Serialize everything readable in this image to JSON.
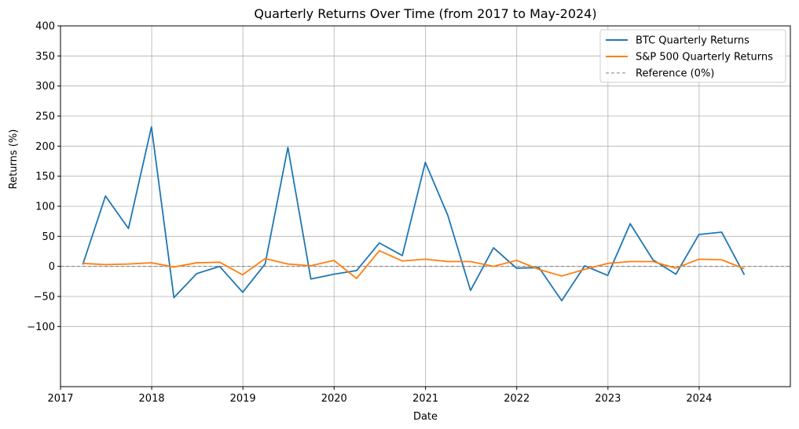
{
  "chart_data": {
    "type": "line",
    "title": "Quarterly Returns Over Time (from 2017 to May-2024)",
    "xlabel": "Date",
    "ylabel": "Returns (%)",
    "xlim": [
      "2017-01-01",
      "2024-12-31"
    ],
    "ylim": [
      -200,
      400
    ],
    "yticks": [
      -100,
      -50,
      0,
      50,
      100,
      150,
      200,
      250,
      300,
      350,
      400
    ],
    "ytick_labels": [
      "−100",
      "−50",
      "0",
      "50",
      "100",
      "150",
      "200",
      "250",
      "300",
      "350",
      "400"
    ],
    "xticks": [
      "2017-01-01",
      "2018-01-01",
      "2019-01-01",
      "2020-01-01",
      "2021-01-01",
      "2022-01-01",
      "2023-01-01",
      "2024-01-01"
    ],
    "xtick_labels": [
      "2017",
      "2018",
      "2019",
      "2020",
      "2021",
      "2022",
      "2023",
      "2024"
    ],
    "grid": true,
    "legend_position": "top-right",
    "x": [
      "2017-03-31",
      "2017-06-30",
      "2017-09-30",
      "2017-12-31",
      "2018-03-31",
      "2018-06-30",
      "2018-09-30",
      "2018-12-31",
      "2019-03-31",
      "2019-06-30",
      "2019-09-30",
      "2019-12-31",
      "2020-03-31",
      "2020-06-30",
      "2020-09-30",
      "2020-12-31",
      "2021-03-31",
      "2021-06-30",
      "2021-09-30",
      "2021-12-31",
      "2022-03-31",
      "2022-06-30",
      "2022-09-30",
      "2022-12-31",
      "2023-03-31",
      "2023-06-30",
      "2023-09-30",
      "2023-12-31",
      "2024-03-31",
      "2024-06-30"
    ],
    "series": [
      {
        "name": "BTC Quarterly Returns",
        "color": "#1f77b4",
        "values": [
          3,
          117,
          63,
          232,
          -52,
          -12,
          0,
          -43,
          4,
          198,
          -21,
          -13,
          -7,
          39,
          18,
          173,
          85,
          -40,
          31,
          -3,
          -2,
          -57,
          1,
          -15,
          71,
          11,
          -13,
          53,
          57,
          -14
        ]
      },
      {
        "name": "S&P 500 Quarterly Returns",
        "color": "#ff7f0e",
        "values": [
          5,
          3,
          4,
          6,
          -1,
          6,
          7,
          -14,
          13,
          4,
          1,
          10,
          -20,
          26,
          9,
          12,
          8,
          8,
          0,
          10,
          -5,
          -16,
          -5,
          5,
          8,
          8,
          -3,
          12,
          11,
          -4
        ]
      }
    ],
    "reference_line": {
      "name": "Reference (0%)",
      "value": 0,
      "color": "#808080",
      "style": "dashed"
    }
  }
}
